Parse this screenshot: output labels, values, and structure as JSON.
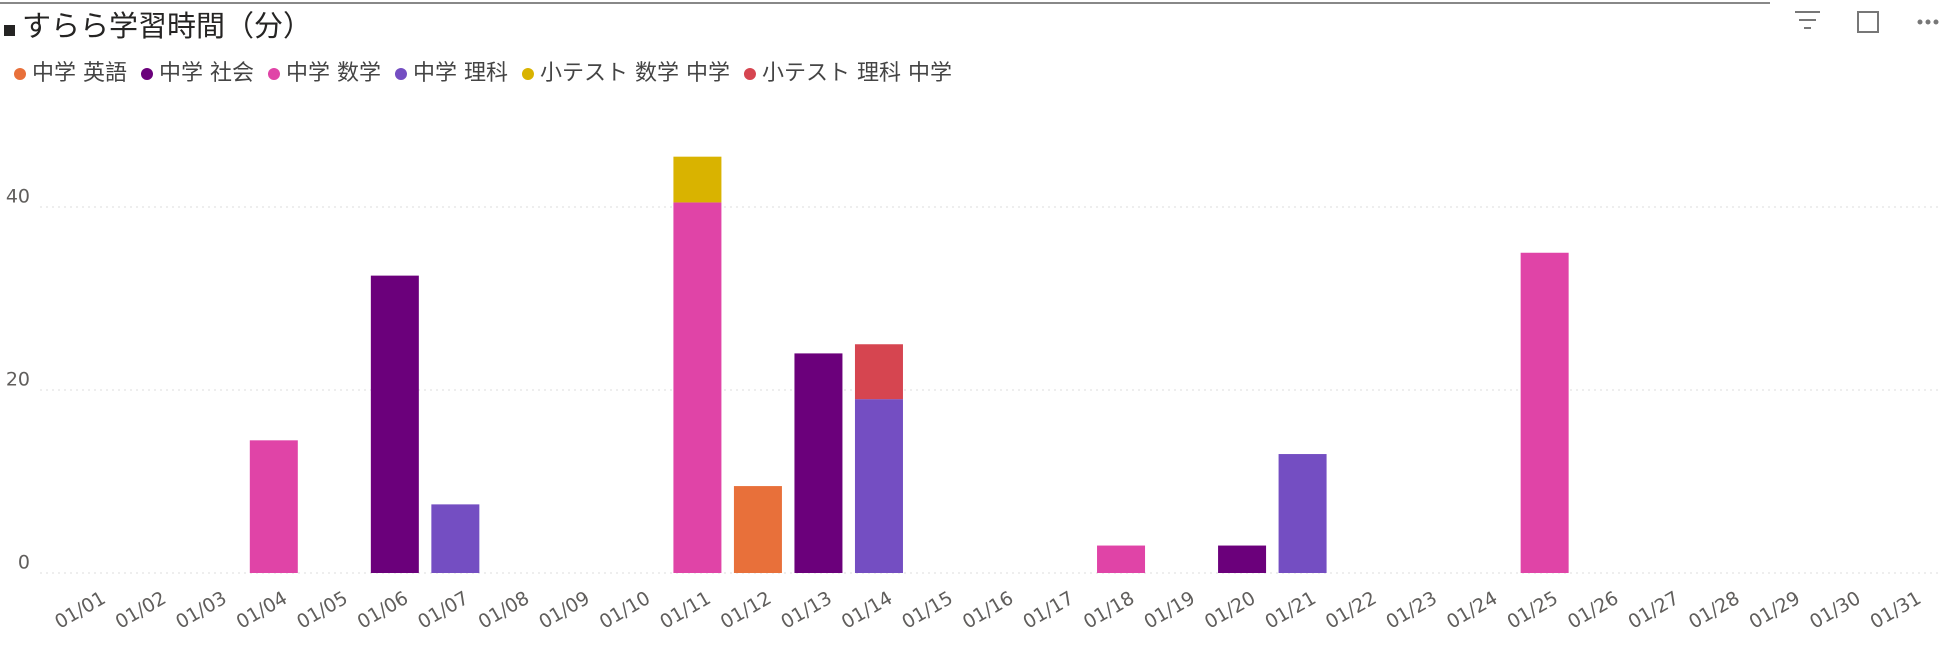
{
  "chart_data": {
    "type": "stacked_bar",
    "title": "すらら学習時間（分）",
    "categories": [
      "01/01",
      "01/02",
      "01/03",
      "01/04",
      "01/05",
      "01/06",
      "01/07",
      "01/08",
      "01/09",
      "01/10",
      "01/11",
      "01/12",
      "01/13",
      "01/14",
      "01/15",
      "01/16",
      "01/17",
      "01/18",
      "01/19",
      "01/20",
      "01/21",
      "01/22",
      "01/23",
      "01/24",
      "01/25",
      "01/26",
      "01/27",
      "01/28",
      "01/29",
      "01/30",
      "01/31"
    ],
    "series": [
      {
        "name": "中学 英語",
        "color": "#E8703A",
        "values": [
          null,
          null,
          null,
          null,
          null,
          null,
          null,
          null,
          null,
          null,
          null,
          9.5,
          null,
          null,
          null,
          null,
          null,
          null,
          null,
          null,
          null,
          null,
          null,
          null,
          null,
          null,
          null,
          null,
          null,
          null,
          null
        ]
      },
      {
        "name": "中学 社会",
        "color": "#6B007B",
        "values": [
          null,
          null,
          null,
          null,
          null,
          32.5,
          null,
          null,
          null,
          null,
          null,
          null,
          24,
          null,
          null,
          null,
          null,
          null,
          null,
          3,
          null,
          null,
          null,
          null,
          null,
          null,
          null,
          null,
          null,
          null,
          null
        ]
      },
      {
        "name": "中学 数学",
        "color": "#E044A7",
        "values": [
          null,
          null,
          null,
          14.5,
          null,
          null,
          null,
          null,
          null,
          null,
          40.5,
          null,
          null,
          null,
          null,
          null,
          null,
          3,
          null,
          null,
          null,
          null,
          null,
          null,
          35,
          null,
          null,
          null,
          null,
          null,
          null
        ]
      },
      {
        "name": "中学 理科",
        "color": "#744EC2",
        "values": [
          null,
          null,
          null,
          null,
          null,
          null,
          7.5,
          null,
          null,
          null,
          null,
          null,
          null,
          19,
          null,
          null,
          null,
          null,
          null,
          null,
          13,
          null,
          null,
          null,
          null,
          null,
          null,
          null,
          null,
          null,
          null
        ]
      },
      {
        "name": "小テスト 数学 中学",
        "color": "#D9B300",
        "values": [
          null,
          null,
          null,
          null,
          null,
          null,
          null,
          null,
          null,
          null,
          5,
          null,
          null,
          null,
          null,
          null,
          null,
          null,
          null,
          null,
          null,
          null,
          null,
          null,
          null,
          null,
          null,
          null,
          null,
          null,
          null
        ]
      },
      {
        "name": "小テスト 理科 中学",
        "color": "#D64550",
        "values": [
          null,
          null,
          null,
          null,
          null,
          null,
          null,
          null,
          null,
          null,
          null,
          null,
          null,
          6,
          null,
          null,
          null,
          null,
          null,
          null,
          null,
          null,
          null,
          null,
          null,
          null,
          null,
          null,
          null,
          null,
          null
        ]
      }
    ],
    "ylim": [
      0,
      48
    ],
    "yticks": [
      0,
      20,
      40
    ],
    "grid": true
  }
}
